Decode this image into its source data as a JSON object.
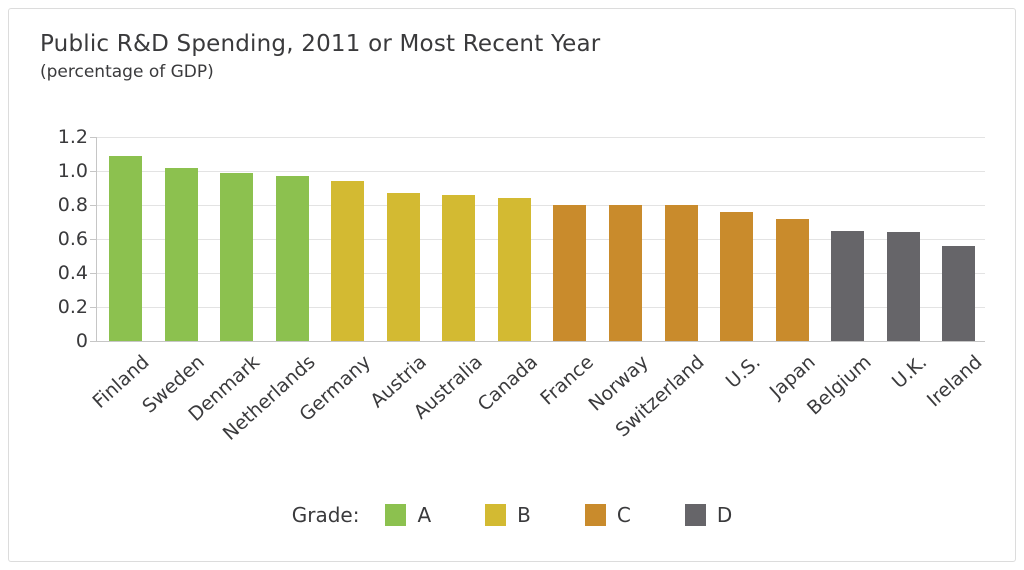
{
  "chart_data": {
    "type": "bar",
    "title": "Public R&D Spending, 2011 or Most Recent Year",
    "subtitle": "(percentage of GDP)",
    "categories": [
      "Finland",
      "Sweden",
      "Denmark",
      "Netherlands",
      "Germany",
      "Austria",
      "Australia",
      "Canada",
      "France",
      "Norway",
      "Switzerland",
      "U.S.",
      "Japan",
      "Belgium",
      "U.K.",
      "Ireland"
    ],
    "values": [
      1.09,
      1.02,
      0.99,
      0.97,
      0.94,
      0.87,
      0.86,
      0.84,
      0.8,
      0.8,
      0.8,
      0.76,
      0.72,
      0.65,
      0.64,
      0.56
    ],
    "grades": [
      "A",
      "A",
      "A",
      "A",
      "B",
      "B",
      "B",
      "B",
      "C",
      "C",
      "C",
      "C",
      "C",
      "D",
      "D",
      "D"
    ],
    "xlabel": "",
    "ylabel": "",
    "ylim": [
      0,
      1.2
    ],
    "ytick_labels": [
      "1.2",
      "1.0",
      "0.8",
      "0.6",
      "0.4",
      "0.2",
      "0"
    ],
    "ytick_values": [
      1.2,
      1.0,
      0.8,
      0.6,
      0.4,
      0.2,
      0
    ],
    "grid": true,
    "legend": {
      "title": "Grade:",
      "position": "bottom",
      "entries": [
        {
          "label": "A",
          "grade": "A"
        },
        {
          "label": "B",
          "grade": "B"
        },
        {
          "label": "C",
          "grade": "C"
        },
        {
          "label": "D",
          "grade": "D"
        }
      ]
    },
    "grade_colors": {
      "A": "#8cc14f",
      "B": "#d3ba32",
      "C": "#c98b2c",
      "D": "#666569"
    },
    "style": {
      "text_color": "#3a3a3c",
      "grid_color": "#e3e3e3",
      "axis_color": "#c6c6c6",
      "frame_border": "#dcdcdc",
      "background": "#ffffff"
    }
  }
}
